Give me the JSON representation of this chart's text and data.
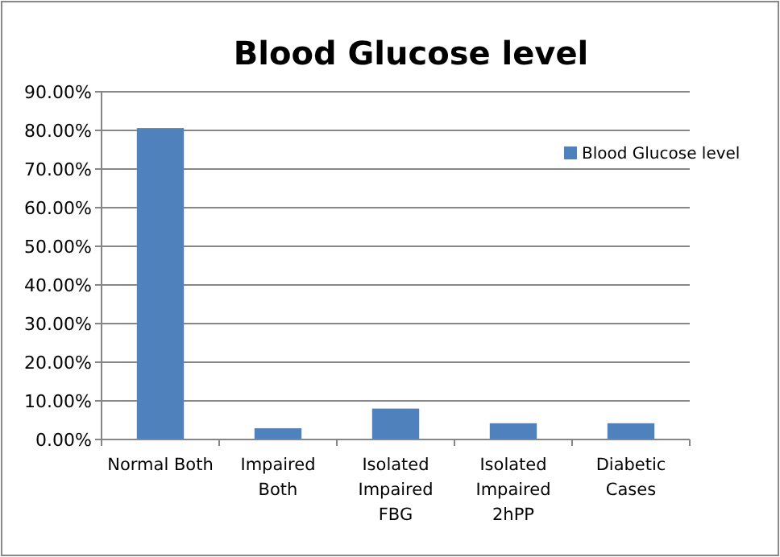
{
  "chart_data": {
    "type": "bar",
    "title": "Blood Glucose level",
    "categories": [
      "Normal Both",
      "Impaired Both",
      "Isolated Impaired FBG",
      "Isolated Impaired 2hPP",
      "Diabetic Cases"
    ],
    "series": [
      {
        "name": "Blood Glucose level",
        "color": "#4f81bd",
        "values": [
          80.6,
          2.9,
          8.0,
          4.2,
          4.2
        ]
      }
    ],
    "ylim": [
      0,
      90
    ],
    "yticks": [
      {
        "value": 0,
        "label": "0.00%"
      },
      {
        "value": 10,
        "label": "10.00%"
      },
      {
        "value": 20,
        "label": "20.00%"
      },
      {
        "value": 30,
        "label": "30.00%"
      },
      {
        "value": 40,
        "label": "40.00%"
      },
      {
        "value": 50,
        "label": "50.00%"
      },
      {
        "value": 60,
        "label": "60.00%"
      },
      {
        "value": 70,
        "label": "70.00%"
      },
      {
        "value": 80,
        "label": "80.00%"
      },
      {
        "value": 90,
        "label": "90.00%"
      }
    ],
    "grid": "y",
    "legend": "right"
  }
}
